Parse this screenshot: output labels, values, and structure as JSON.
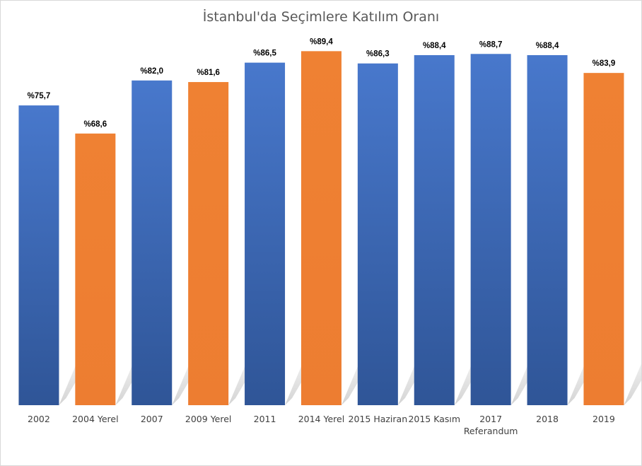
{
  "chart_data": {
    "type": "bar",
    "title": "İstanbul'da Seçimlere Katılım Oranı",
    "categories": [
      [
        "2002"
      ],
      [
        "2004 Yerel"
      ],
      [
        "2007"
      ],
      [
        "2009 Yerel"
      ],
      [
        "2011"
      ],
      [
        "2014 Yerel"
      ],
      [
        "2015 Haziran"
      ],
      [
        "2015 Kasım"
      ],
      [
        "2017",
        "Referandum"
      ],
      [
        "2018"
      ],
      [
        "2019"
      ]
    ],
    "values": [
      75.7,
      68.6,
      82.0,
      81.6,
      86.5,
      89.4,
      86.3,
      88.4,
      88.7,
      88.4,
      83.9
    ],
    "data_labels": [
      "%75,7",
      "%68,6",
      "%82,0",
      "%81,6",
      "%86,5",
      "%89,4",
      "%86,3",
      "%88,4",
      "%88,7",
      "%88,4",
      "%83,9"
    ],
    "bar_colors": [
      "#4472c4",
      "#ed7d31",
      "#4472c4",
      "#ed7d31",
      "#4472c4",
      "#ed7d31",
      "#4472c4",
      "#4472c4",
      "#4472c4",
      "#4472c4",
      "#ed7d31"
    ],
    "colors": {
      "blue_series": "#4472c4",
      "orange_series": "#ed7d31"
    },
    "ylim": [
      0,
      100
    ],
    "xlabel": "",
    "ylabel": "",
    "grid": false,
    "legend": "none"
  }
}
